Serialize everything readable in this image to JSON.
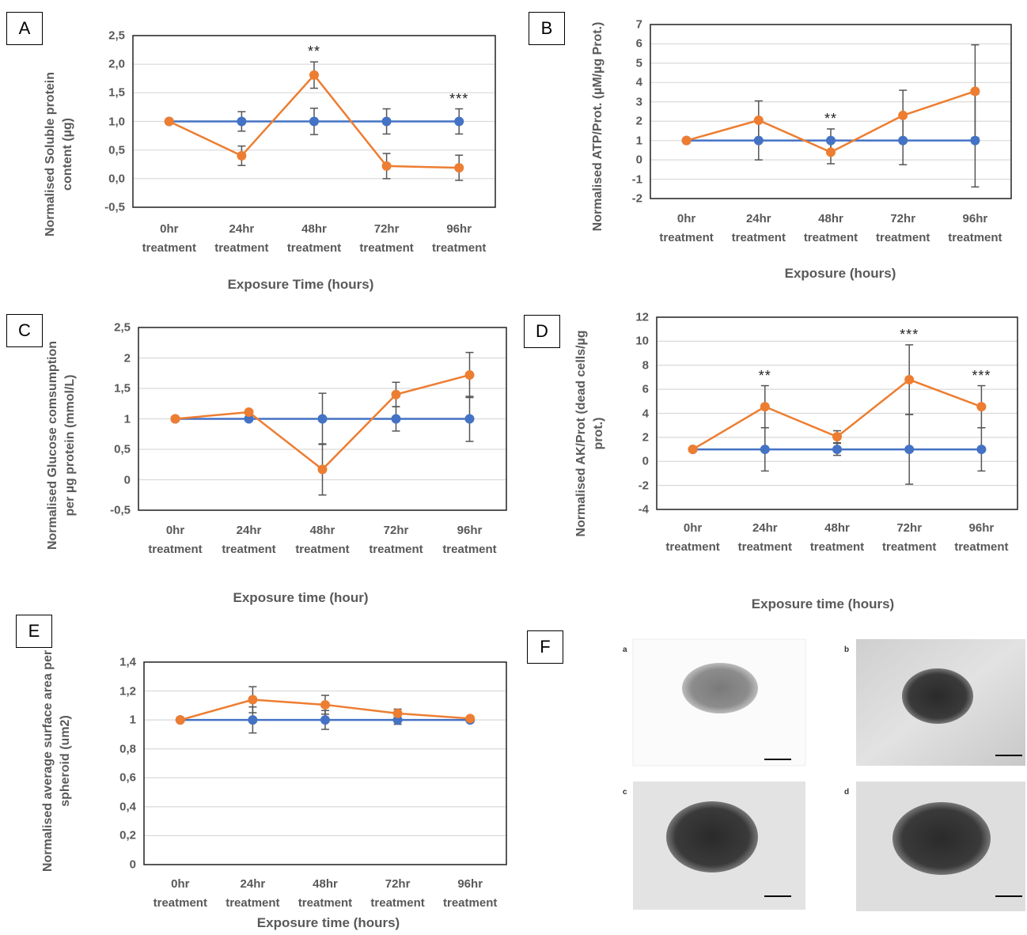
{
  "chart_data": [
    {
      "type": "line",
      "panel": "A",
      "x_label": "Exposure Time (hours)",
      "y_label": "Normalised Soluble protein content (µg)",
      "categories": [
        "0hr treatment",
        "24hr treatment",
        "48hr treatment",
        "72hr treatment",
        "96hr treatment"
      ],
      "series": [
        {
          "color": "#4472c4",
          "values": [
            1,
            1,
            1,
            1,
            1
          ],
          "errors": [
            0,
            0.17,
            0.23,
            0.22,
            0.22
          ]
        },
        {
          "color": "#ed7d31",
          "values": [
            1,
            0.4,
            1.81,
            0.22,
            0.19
          ],
          "errors": [
            0,
            0.17,
            0.23,
            0.22,
            0.22
          ]
        }
      ],
      "significance": [
        null,
        null,
        "**",
        null,
        "***"
      ],
      "ylim": [
        -0.5,
        2.5
      ],
      "yticks": [
        {
          "value": -0.5,
          "label": "-0,5"
        },
        {
          "value": 0,
          "label": "0,0"
        },
        {
          "value": 0.5,
          "label": "0,5"
        },
        {
          "value": 1,
          "label": "1,0"
        },
        {
          "value": 1.5,
          "label": "1,5"
        },
        {
          "value": 2,
          "label": "2,0"
        },
        {
          "value": 2.5,
          "label": "2,5"
        }
      ],
      "grid": true
    },
    {
      "type": "line",
      "panel": "B",
      "x_label": "Exposure (hours)",
      "y_label": "Normalised ATP/Prot. (µM/µg Prot.)",
      "categories": [
        "0hr treatment",
        "24hr treatment",
        "48hr treatment",
        "72hr treatment",
        "96hr treatment"
      ],
      "series": [
        {
          "color": "#4472c4",
          "values": [
            1,
            1,
            1,
            1,
            1
          ],
          "errors": [
            0,
            1,
            0.6,
            1.25,
            2.4
          ]
        },
        {
          "color": "#ed7d31",
          "values": [
            1,
            2.05,
            0.4,
            2.3,
            3.55
          ],
          "errors": [
            0,
            1,
            0.6,
            1.3,
            2.4
          ]
        }
      ],
      "significance": [
        null,
        null,
        "**",
        null,
        null
      ],
      "ylim": [
        -2,
        7
      ],
      "yticks": [
        -2,
        -1,
        0,
        1,
        2,
        3,
        4,
        5,
        6,
        7
      ],
      "grid": true
    },
    {
      "type": "line",
      "panel": "C",
      "x_label": "Exposure time (hour)",
      "y_label": "Normalised Glucose comsumption per µg protein (mmol/L)",
      "categories": [
        "0hr treatment",
        "24hr treatment",
        "48hr treatment",
        "72hr treatment",
        "96hr treatment"
      ],
      "series": [
        {
          "color": "#4472c4",
          "values": [
            1,
            1,
            1,
            1,
            1
          ],
          "errors": [
            0,
            0,
            0.42,
            0.2,
            0.37
          ]
        },
        {
          "color": "#ed7d31",
          "values": [
            1,
            1.11,
            0.17,
            1.4,
            1.72
          ],
          "errors": [
            0,
            0.03,
            0.42,
            0.2,
            0.37
          ]
        }
      ],
      "significance": [
        null,
        null,
        null,
        null,
        null
      ],
      "ylim": [
        -0.5,
        2.5
      ],
      "yticks": [
        {
          "value": -0.5,
          "label": "-0,5"
        },
        0,
        {
          "value": 0.5,
          "label": "0,5"
        },
        1,
        {
          "value": 1.5,
          "label": "1,5"
        },
        2,
        {
          "value": 2.5,
          "label": "2,5"
        }
      ],
      "grid": true
    },
    {
      "type": "line",
      "panel": "D",
      "x_label": "Exposure time (hours)",
      "y_label": "Normalised AK/Prot (dead cells/µg prot.)",
      "categories": [
        "0hr treatment",
        "24hr treatment",
        "48hr treatment",
        "72hr treatment",
        "96hr treatment"
      ],
      "series": [
        {
          "color": "#4472c4",
          "values": [
            1,
            1,
            1,
            1,
            1
          ],
          "errors": [
            0,
            1.8,
            0.5,
            2.9,
            1.8
          ]
        },
        {
          "color": "#ed7d31",
          "values": [
            1,
            4.55,
            2.05,
            6.8,
            4.55
          ],
          "errors": [
            0,
            1.75,
            0.5,
            2.9,
            1.75
          ]
        }
      ],
      "significance": [
        null,
        "**",
        null,
        "***",
        "***"
      ],
      "ylim": [
        -4,
        12
      ],
      "yticks": [
        -4,
        -2,
        0,
        2,
        4,
        6,
        8,
        10,
        12
      ],
      "grid": true
    },
    {
      "type": "line",
      "panel": "E",
      "x_label": "Exposure time (hours)",
      "y_label": "Normalised average surface area per spheroid (um2)",
      "categories": [
        "0hr treatment",
        "24hr treatment",
        "48hr treatment",
        "72hr treatment",
        "96hr treatment"
      ],
      "series": [
        {
          "color": "#4472c4",
          "values": [
            1,
            1,
            1,
            1,
            1
          ],
          "errors": [
            0,
            0.09,
            0.065,
            0.03,
            0.01
          ]
        },
        {
          "color": "#ed7d31",
          "values": [
            1,
            1.14,
            1.105,
            1.045,
            1.01
          ],
          "errors": [
            0,
            0.09,
            0.065,
            0.03,
            0.01
          ]
        }
      ],
      "significance": [
        null,
        null,
        null,
        null,
        null
      ],
      "ylim": [
        0,
        1.4
      ],
      "yticks": [
        0,
        {
          "value": 0.2,
          "label": "0,2"
        },
        {
          "value": 0.4,
          "label": "0,4"
        },
        {
          "value": 0.6,
          "label": "0,6"
        },
        {
          "value": 0.8,
          "label": "0,8"
        },
        1,
        {
          "value": 1.2,
          "label": "1,2"
        },
        {
          "value": 1.4,
          "label": "1,4"
        }
      ],
      "grid": true
    }
  ],
  "micrographs": {
    "panel": "F",
    "images": [
      {
        "label": "a"
      },
      {
        "label": "b"
      },
      {
        "label": "c"
      },
      {
        "label": "d"
      }
    ]
  }
}
